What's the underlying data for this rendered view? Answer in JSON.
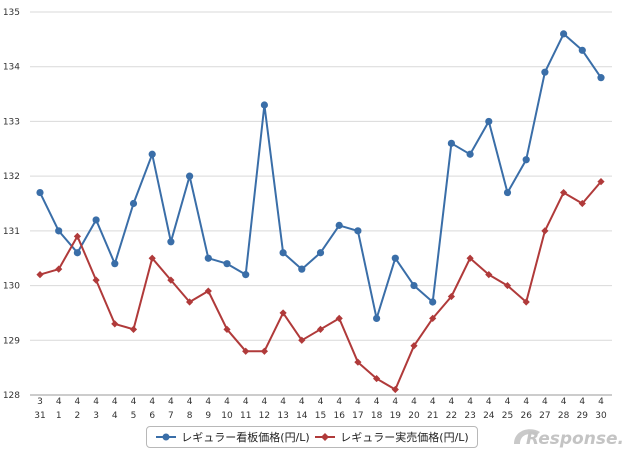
{
  "chart_data": {
    "type": "line",
    "categories": [
      [
        "3",
        "31"
      ],
      [
        "4",
        "1"
      ],
      [
        "4",
        "2"
      ],
      [
        "4",
        "3"
      ],
      [
        "4",
        "4"
      ],
      [
        "4",
        "5"
      ],
      [
        "4",
        "6"
      ],
      [
        "4",
        "7"
      ],
      [
        "4",
        "8"
      ],
      [
        "4",
        "9"
      ],
      [
        "4",
        "10"
      ],
      [
        "4",
        "11"
      ],
      [
        "4",
        "12"
      ],
      [
        "4",
        "13"
      ],
      [
        "4",
        "14"
      ],
      [
        "4",
        "15"
      ],
      [
        "4",
        "16"
      ],
      [
        "4",
        "17"
      ],
      [
        "4",
        "18"
      ],
      [
        "4",
        "19"
      ],
      [
        "4",
        "20"
      ],
      [
        "4",
        "21"
      ],
      [
        "4",
        "22"
      ],
      [
        "4",
        "23"
      ],
      [
        "4",
        "24"
      ],
      [
        "4",
        "25"
      ],
      [
        "4",
        "26"
      ],
      [
        "4",
        "27"
      ],
      [
        "4",
        "28"
      ],
      [
        "4",
        "29"
      ],
      [
        "4",
        "30"
      ]
    ],
    "series": [
      {
        "name": "レギュラー看板価格(円/L)",
        "color": "#3a6ea8",
        "marker": "circle",
        "values": [
          131.7,
          131.0,
          130.6,
          131.2,
          130.4,
          131.5,
          132.4,
          130.8,
          132.0,
          130.5,
          130.4,
          130.2,
          133.3,
          130.6,
          130.3,
          130.6,
          131.1,
          131.0,
          129.4,
          130.5,
          130.0,
          129.7,
          132.6,
          132.4,
          133.0,
          131.7,
          132.3,
          133.9,
          134.6,
          134.3,
          133.8
        ]
      },
      {
        "name": "レギュラー実売価格(円/L)",
        "color": "#b03a3a",
        "marker": "diamond",
        "values": [
          130.2,
          130.3,
          130.9,
          130.1,
          129.3,
          129.2,
          130.5,
          130.1,
          129.7,
          129.9,
          129.2,
          128.8,
          128.8,
          129.5,
          129.0,
          129.2,
          129.4,
          128.6,
          128.3,
          128.1,
          128.9,
          129.4,
          129.8,
          130.5,
          130.2,
          130.0,
          129.7,
          131.0,
          131.7,
          131.5,
          131.9
        ]
      }
    ],
    "yticks": [
      128,
      129,
      130,
      131,
      132,
      133,
      134,
      135
    ],
    "ylim": [
      128,
      135
    ],
    "grid": true,
    "legend_position": "bottom"
  },
  "watermark": {
    "text": "Response.",
    "icon": "response-logo-icon"
  }
}
